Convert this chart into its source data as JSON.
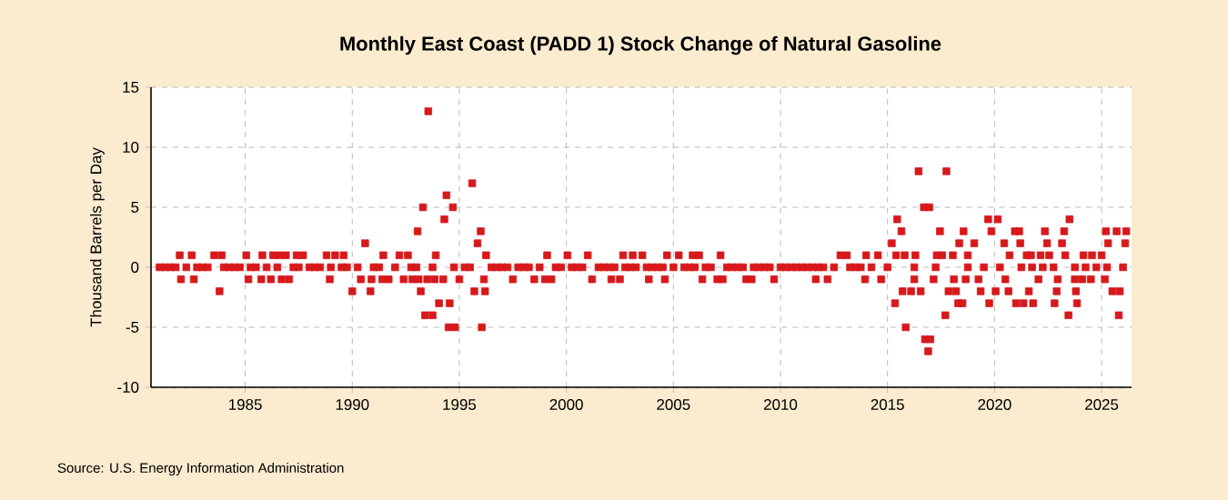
{
  "chart_data": {
    "type": "scatter",
    "title": "Monthly East Coast (PADD 1) Stock Change of Natural Gasoline",
    "ylabel": "Thousand Barrels per Day",
    "annotations": [
      "Source: U.S. Energy Information Administration"
    ],
    "xlim": [
      1980.6,
      2026.4
    ],
    "xticks": [
      1985,
      1990,
      1995,
      2000,
      2005,
      2010,
      2015,
      2020,
      2025
    ],
    "ylim": [
      -10,
      15
    ],
    "yticks": [
      -10,
      -5,
      0,
      5,
      10,
      15
    ],
    "grid": true,
    "marker": "square",
    "series": [
      {
        "color": "#d7191c",
        "x": [
          1981,
          1981.25,
          1981.5,
          1981.75,
          1982.25,
          1982.75,
          1983,
          1983.25,
          1984,
          1984.25,
          1984.5,
          1984.75,
          1985.25,
          1985.5,
          1986,
          1986.5,
          1987.25,
          1987.5,
          1988,
          1988.25,
          1988.5,
          1989,
          1989.5,
          1989.75,
          1990.25,
          1991,
          1991.25,
          1992,
          1992.75,
          1993,
          1993.75,
          1994.75,
          1995.25,
          1995.5,
          1996.5,
          1996.75,
          1997,
          1997.25,
          1997.75,
          1998,
          1998.25,
          1998.75,
          1999.5,
          1999.75,
          2000.25,
          2000.5,
          2000.75,
          2001.5,
          2001.75,
          2002,
          2002.25,
          2002.75,
          2003,
          2003.25,
          2003.75,
          2004,
          2004.25,
          2004.5,
          2005,
          2005.5,
          2005.75,
          2006,
          2006.5,
          2006.75,
          2007.5,
          2007.75,
          2008,
          2008.25,
          2008.75,
          2009,
          2009.25,
          2009.5,
          2010,
          2010.25,
          2010.5,
          2010.75,
          2011,
          2011.25,
          2011.5,
          2011.75,
          2012,
          2012.5,
          2013.25,
          2013.5,
          2013.75,
          2014.25,
          2015,
          2016.25,
          2017.25,
          2018.75,
          2019.5,
          2020.25,
          2021.25,
          2021.75,
          2022.25,
          2022.75,
          2023.75,
          2024.25,
          2024.75,
          2025.25,
          2026,
          1981.94,
          1982.0,
          1982.5,
          1982.6,
          1983.55,
          1983.9,
          1983.8,
          1985.05,
          1985.15,
          1985.8,
          1985.75,
          1986.3,
          1986.6,
          1986.9,
          1986.2,
          1986.7,
          1987.05,
          1987.4,
          1987.7,
          1988.8,
          1989.2,
          1989.6,
          1988.95,
          1990.0,
          1990.4,
          1990.6,
          1990.85,
          1990.9,
          1991.4,
          1991.7,
          1991.45,
          1992.2,
          1992.6,
          1992.4,
          1992.8,
          1993.1,
          1993.5,
          1993.05,
          1993.3,
          1993.55,
          1993.2,
          1993.4,
          1993.75,
          1993.9,
          1993.85,
          1994.25,
          1994.05,
          1994.55,
          1994.3,
          1994.4,
          1994.7,
          1994.5,
          1994.8,
          1995.0,
          1995.6,
          1995.7,
          1996.2,
          1995.85,
          1996.0,
          1996.05,
          1996.25,
          1996.15,
          1997.5,
          1998.5,
          1999.0,
          1999.3,
          1999.1,
          2000.05,
          2001.0,
          2001.2,
          2002.1,
          2002.5,
          2002.65,
          2003.1,
          2003.55,
          2003.85,
          2004.6,
          2004.7,
          2005.25,
          2005.9,
          2006.2,
          2006.35,
          2007.05,
          2007.3,
          2007.2,
          2008.4,
          2008.65,
          2009.7,
          2011.65,
          2012.2,
          2012.8,
          2013.1,
          2014.0,
          2014.55,
          2013.95,
          2014.7,
          2015.2,
          2015.45,
          2015.65,
          2015.35,
          2015.4,
          2015.8,
          2016.3,
          2016.25,
          2015.7,
          2016.1,
          2015.85,
          2016.45,
          2016.55,
          2016.7,
          2016.95,
          2016.75,
          2017.0,
          2016.9,
          2017.15,
          2017.3,
          2017.55,
          2017.45,
          2017.7,
          2017.75,
          2017.85,
          2018.05,
          2018.1,
          2018.2,
          2018.3,
          2018.5,
          2018.35,
          2018.55,
          2018.65,
          2018.75,
          2019.05,
          2019.25,
          2019.35,
          2019.7,
          2019.75,
          2019.85,
          2020.05,
          2020.15,
          2020.45,
          2020.5,
          2020.65,
          2020.7,
          2020.95,
          2021.0,
          2021.15,
          2021.2,
          2021.35,
          2021.5,
          2021.6,
          2021.8,
          2021.7,
          2022.05,
          2022.15,
          2022.35,
          2022.45,
          2022.55,
          2022.8,
          2022.95,
          2022.9,
          2023.15,
          2023.25,
          2023.3,
          2023.45,
          2023.5,
          2023.75,
          2023.8,
          2023.85,
          2024.15,
          2024.55,
          2024.1,
          2024.5,
          2025.0,
          2025.15,
          2025.2,
          2025.3,
          2025.5,
          2025.7,
          2025.8,
          2025.85,
          2026.1,
          2026.15
        ],
        "values": [
          0,
          0,
          0,
          0,
          0,
          0,
          0,
          0,
          0,
          0,
          0,
          0,
          0,
          0,
          0,
          0,
          0,
          0,
          0,
          0,
          0,
          0,
          0,
          0,
          0,
          0,
          0,
          0,
          0,
          0,
          0,
          0,
          0,
          0,
          0,
          0,
          0,
          0,
          0,
          0,
          0,
          0,
          0,
          0,
          0,
          0,
          0,
          0,
          0,
          0,
          0,
          0,
          0,
          0,
          0,
          0,
          0,
          0,
          0,
          0,
          0,
          0,
          0,
          0,
          0,
          0,
          0,
          0,
          0,
          0,
          0,
          0,
          0,
          0,
          0,
          0,
          0,
          0,
          0,
          0,
          0,
          0,
          0,
          0,
          0,
          0,
          0,
          0,
          0,
          0,
          0,
          0,
          0,
          0,
          0,
          0,
          0,
          0,
          0,
          0,
          0,
          1,
          -1,
          1,
          -1,
          1,
          1,
          -2,
          1,
          -1,
          1,
          -1,
          1,
          1,
          1,
          -1,
          -1,
          -1,
          1,
          1,
          1,
          1,
          1,
          -1,
          -2,
          -1,
          2,
          -2,
          -1,
          -1,
          -1,
          1,
          1,
          1,
          -1,
          -1,
          -1,
          -1,
          3,
          5,
          13,
          -2,
          -4,
          -4,
          1,
          -1,
          -1,
          -3,
          -3,
          4,
          6,
          5,
          -5,
          -5,
          -1,
          7,
          -2,
          -2,
          2,
          3,
          -5,
          1,
          -1,
          -1,
          -1,
          -1,
          -1,
          1,
          1,
          1,
          -1,
          -1,
          -1,
          1,
          1,
          1,
          -1,
          -1,
          1,
          1,
          1,
          1,
          -1,
          -1,
          -1,
          1,
          -1,
          -1,
          -1,
          -1,
          -1,
          1,
          1,
          1,
          1,
          -1,
          -1,
          2,
          4,
          3,
          -3,
          1,
          1,
          1,
          -1,
          -2,
          -2,
          -5,
          8,
          -2,
          5,
          5,
          -6,
          -6,
          -7,
          -1,
          1,
          1,
          3,
          -4,
          8,
          -2,
          1,
          -1,
          -2,
          -3,
          -3,
          2,
          3,
          -1,
          1,
          2,
          -1,
          -2,
          4,
          -3,
          3,
          -2,
          4,
          2,
          -1,
          -2,
          1,
          3,
          -3,
          3,
          2,
          -3,
          1,
          -2,
          -3,
          1,
          -1,
          1,
          3,
          2,
          1,
          -3,
          -1,
          -2,
          2,
          3,
          1,
          -4,
          4,
          -1,
          -2,
          -3,
          1,
          1,
          -1,
          -1,
          1,
          -1,
          3,
          2,
          -2,
          3,
          -4,
          -2,
          2,
          3
        ]
      }
    ]
  }
}
